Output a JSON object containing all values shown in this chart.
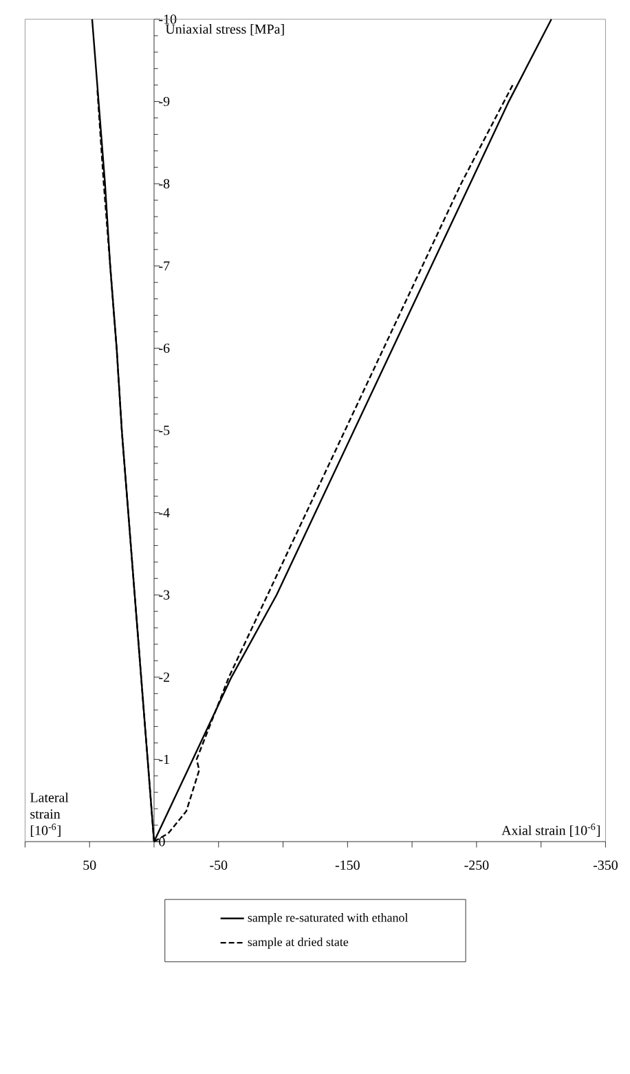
{
  "chart_data": {
    "type": "line",
    "xlabel": "Axial strain [10$^{-6}$]",
    "ylabel": "Uniaxial stress [MPa]",
    "annotations": [
      "Lateral strain [10$^{-6}$]"
    ],
    "xlim": [
      100,
      -350
    ],
    "ylim": [
      0,
      -10
    ],
    "xticks": [
      {
        "value": 100,
        "label": null
      },
      50,
      {
        "value": 0,
        "label": null
      },
      -50,
      {
        "value": -100,
        "label": null
      },
      -150,
      {
        "value": -200,
        "label": null
      },
      -250,
      {
        "value": -300,
        "label": null
      },
      -350
    ],
    "yticks": [
      0,
      -1,
      -2,
      -3,
      -4,
      -5,
      -6,
      -7,
      -8,
      -9,
      -10
    ],
    "legend": "bottom",
    "marker": "none",
    "series": [
      {
        "name": "sample re-saturated with ethanol",
        "color": "#000000",
        "line_style": "solid",
        "x": [
          0,
          -15,
          -30,
          -60,
          -95,
          -125,
          -155,
          -185,
          -215,
          -245,
          -275,
          -308
        ],
        "values": [
          0,
          -0.5,
          -1,
          -2,
          -3,
          -4,
          -5,
          -6,
          -7,
          -8,
          -9,
          -10
        ]
      },
      {
        "color": "#000000",
        "line_style": "solid",
        "x": [
          0,
          5,
          10,
          15,
          20,
          25,
          29,
          34,
          38,
          43,
          48
        ],
        "values": [
          0,
          -1,
          -2,
          -3,
          -4,
          -5,
          -6,
          -7,
          -8,
          -9,
          -10
        ]
      },
      {
        "name": "sample at dried state",
        "color": "#000000",
        "line_style": "dashed",
        "x": [
          0,
          -11,
          -25,
          -35,
          -33,
          -58,
          -88,
          -118,
          -148,
          -178,
          -208,
          -238,
          -278
        ],
        "values": [
          0,
          -0.1,
          -0.37,
          -0.87,
          -1,
          -2,
          -3,
          -4,
          -5,
          -6,
          -7,
          -8,
          -9.2
        ]
      },
      {
        "color": "#000000",
        "line_style": "dashed",
        "x": [
          0,
          5,
          10,
          15,
          20,
          25,
          29,
          34,
          39,
          44
        ],
        "values": [
          0,
          -1,
          -2,
          -3,
          -4,
          -5,
          -6,
          -7,
          -8,
          -9.15
        ]
      }
    ]
  }
}
